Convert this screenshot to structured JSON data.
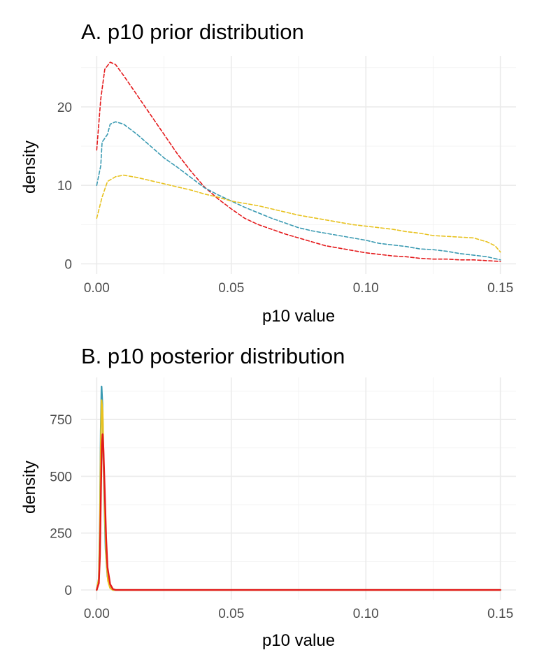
{
  "chart_data": [
    {
      "type": "line",
      "title": "A. p10 prior distribution",
      "xlabel": "p10 value",
      "ylabel": "density",
      "xlim": [
        -0.0058,
        0.1558
      ],
      "ylim": [
        -1.3,
        26.5
      ],
      "x_ticks": [
        0.0,
        0.05,
        0.1,
        0.15
      ],
      "x_tick_labels": [
        "0.00",
        "0.05",
        "0.10",
        "0.15"
      ],
      "y_ticks": [
        0,
        10,
        20
      ],
      "y_tick_labels": [
        "0",
        "10",
        "20"
      ],
      "grid": true,
      "legend": "none",
      "line_style": "dashed",
      "series": [
        {
          "color": "#e41a1c",
          "points": [
            [
              0.0,
              14.5
            ],
            [
              0.0015,
              21.0
            ],
            [
              0.003,
              24.8
            ],
            [
              0.005,
              25.7
            ],
            [
              0.007,
              25.4
            ],
            [
              0.01,
              24.0
            ],
            [
              0.015,
              21.5
            ],
            [
              0.02,
              19.0
            ],
            [
              0.025,
              16.5
            ],
            [
              0.03,
              14.0
            ],
            [
              0.035,
              11.8
            ],
            [
              0.04,
              9.8
            ],
            [
              0.045,
              8.3
            ],
            [
              0.05,
              7.0
            ],
            [
              0.055,
              5.8
            ],
            [
              0.06,
              5.0
            ],
            [
              0.065,
              4.4
            ],
            [
              0.07,
              3.8
            ],
            [
              0.075,
              3.3
            ],
            [
              0.08,
              2.8
            ],
            [
              0.085,
              2.3
            ],
            [
              0.09,
              2.0
            ],
            [
              0.095,
              1.7
            ],
            [
              0.1,
              1.4
            ],
            [
              0.105,
              1.2
            ],
            [
              0.11,
              1.0
            ],
            [
              0.115,
              0.9
            ],
            [
              0.12,
              0.7
            ],
            [
              0.125,
              0.6
            ],
            [
              0.13,
              0.6
            ],
            [
              0.135,
              0.5
            ],
            [
              0.14,
              0.5
            ],
            [
              0.145,
              0.4
            ],
            [
              0.15,
              0.3
            ]
          ]
        },
        {
          "color": "#3a9ab2",
          "points": [
            [
              0.0,
              10.0
            ],
            [
              0.0015,
              12.5
            ],
            [
              0.002,
              15.5
            ],
            [
              0.004,
              16.5
            ],
            [
              0.005,
              17.8
            ],
            [
              0.007,
              18.1
            ],
            [
              0.01,
              17.8
            ],
            [
              0.015,
              16.5
            ],
            [
              0.02,
              15.0
            ],
            [
              0.025,
              13.5
            ],
            [
              0.03,
              12.3
            ],
            [
              0.035,
              11.0
            ],
            [
              0.04,
              9.7
            ],
            [
              0.045,
              8.8
            ],
            [
              0.05,
              8.0
            ],
            [
              0.055,
              7.2
            ],
            [
              0.06,
              6.5
            ],
            [
              0.065,
              5.8
            ],
            [
              0.07,
              5.2
            ],
            [
              0.075,
              4.6
            ],
            [
              0.08,
              4.2
            ],
            [
              0.085,
              3.9
            ],
            [
              0.09,
              3.6
            ],
            [
              0.095,
              3.3
            ],
            [
              0.1,
              3.0
            ],
            [
              0.105,
              2.6
            ],
            [
              0.11,
              2.4
            ],
            [
              0.115,
              2.2
            ],
            [
              0.12,
              1.9
            ],
            [
              0.125,
              1.8
            ],
            [
              0.13,
              1.6
            ],
            [
              0.135,
              1.3
            ],
            [
              0.14,
              1.1
            ],
            [
              0.145,
              0.9
            ],
            [
              0.15,
              0.5
            ]
          ]
        },
        {
          "color": "#e8c21f",
          "points": [
            [
              0.0,
              5.8
            ],
            [
              0.002,
              8.5
            ],
            [
              0.004,
              10.5
            ],
            [
              0.007,
              11.1
            ],
            [
              0.01,
              11.3
            ],
            [
              0.015,
              11.0
            ],
            [
              0.02,
              10.6
            ],
            [
              0.025,
              10.2
            ],
            [
              0.03,
              9.8
            ],
            [
              0.035,
              9.4
            ],
            [
              0.04,
              8.9
            ],
            [
              0.045,
              8.5
            ],
            [
              0.05,
              8.0
            ],
            [
              0.055,
              7.7
            ],
            [
              0.06,
              7.4
            ],
            [
              0.065,
              7.0
            ],
            [
              0.07,
              6.6
            ],
            [
              0.075,
              6.2
            ],
            [
              0.08,
              5.9
            ],
            [
              0.085,
              5.6
            ],
            [
              0.09,
              5.3
            ],
            [
              0.095,
              5.0
            ],
            [
              0.1,
              4.8
            ],
            [
              0.105,
              4.6
            ],
            [
              0.11,
              4.4
            ],
            [
              0.115,
              4.1
            ],
            [
              0.12,
              3.9
            ],
            [
              0.125,
              3.6
            ],
            [
              0.13,
              3.5
            ],
            [
              0.135,
              3.4
            ],
            [
              0.14,
              3.3
            ],
            [
              0.145,
              2.8
            ],
            [
              0.148,
              2.3
            ],
            [
              0.15,
              1.5
            ]
          ]
        }
      ]
    },
    {
      "type": "line",
      "title": "B. p10 posterior distribution",
      "xlabel": "p10 value",
      "ylabel": "density",
      "xlim": [
        -0.0058,
        0.1558
      ],
      "ylim": [
        -43,
        935
      ],
      "x_ticks": [
        0.0,
        0.05,
        0.1,
        0.15
      ],
      "x_tick_labels": [
        "0.00",
        "0.05",
        "0.10",
        "0.15"
      ],
      "y_ticks": [
        0,
        250,
        500,
        750
      ],
      "y_tick_labels": [
        "0",
        "250",
        "500",
        "750"
      ],
      "grid": true,
      "legend": "none",
      "line_style": "solid",
      "series": [
        {
          "color": "#3a9ab2",
          "points": [
            [
              0.0,
              0
            ],
            [
              0.0008,
              50
            ],
            [
              0.0012,
              300
            ],
            [
              0.0015,
              700
            ],
            [
              0.0018,
              895
            ],
            [
              0.0021,
              820
            ],
            [
              0.0024,
              650
            ],
            [
              0.0028,
              400
            ],
            [
              0.0033,
              180
            ],
            [
              0.004,
              60
            ],
            [
              0.005,
              10
            ],
            [
              0.006,
              0
            ],
            [
              0.15,
              0
            ]
          ]
        },
        {
          "color": "#e8c21f",
          "points": [
            [
              0.0,
              0
            ],
            [
              0.0008,
              50
            ],
            [
              0.0012,
              260
            ],
            [
              0.0015,
              620
            ],
            [
              0.0018,
              835
            ],
            [
              0.0022,
              780
            ],
            [
              0.0025,
              600
            ],
            [
              0.003,
              350
            ],
            [
              0.0035,
              150
            ],
            [
              0.0042,
              40
            ],
            [
              0.005,
              8
            ],
            [
              0.006,
              0
            ],
            [
              0.15,
              0
            ]
          ]
        },
        {
          "color": "#e41a1c",
          "points": [
            [
              0.0,
              0
            ],
            [
              0.0008,
              30
            ],
            [
              0.0012,
              150
            ],
            [
              0.0016,
              450
            ],
            [
              0.0019,
              640
            ],
            [
              0.0022,
              685
            ],
            [
              0.0025,
              620
            ],
            [
              0.003,
              430
            ],
            [
              0.0035,
              230
            ],
            [
              0.004,
              100
            ],
            [
              0.005,
              25
            ],
            [
              0.006,
              4
            ],
            [
              0.007,
              0
            ],
            [
              0.15,
              0
            ]
          ]
        }
      ]
    }
  ]
}
